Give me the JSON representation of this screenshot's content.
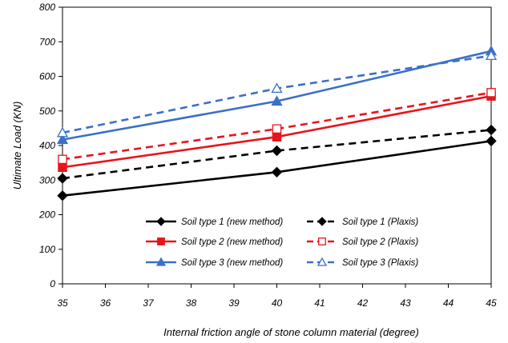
{
  "chart_data": {
    "type": "line",
    "title": "",
    "xlabel": "Internal friction angle of stone column material (degree)",
    "ylabel": "Ultimate Load (KN)",
    "xlim": [
      35,
      45
    ],
    "ylim": [
      0,
      800
    ],
    "x_ticks": [
      "35",
      "36",
      "37",
      "38",
      "39",
      "40",
      "41",
      "42",
      "43",
      "44",
      "45"
    ],
    "y_ticks": [
      "0",
      "100",
      "200",
      "300",
      "400",
      "500",
      "600",
      "700",
      "800"
    ],
    "grid": false,
    "legend_position": "bottom-right",
    "x": [
      35,
      40,
      45
    ],
    "series": [
      {
        "name": "Soil type 1 (new method)",
        "values": [
          255,
          323,
          413
        ],
        "color": "#000000",
        "dash": false,
        "marker": "diamond-filled"
      },
      {
        "name": "Soil type 1 (Plaxis)",
        "values": [
          305,
          385,
          445
        ],
        "color": "#000000",
        "dash": true,
        "marker": "diamond-filled"
      },
      {
        "name": "Soil type 2 (new method)",
        "values": [
          337,
          425,
          543
        ],
        "color": "#e8141b",
        "dash": false,
        "marker": "square-filled"
      },
      {
        "name": "Soil type 2 (Plaxis)",
        "values": [
          360,
          448,
          553
        ],
        "color": "#e8141b",
        "dash": true,
        "marker": "square-open"
      },
      {
        "name": "Soil type 3 (new method)",
        "values": [
          417,
          528,
          673
        ],
        "color": "#3b70c8",
        "dash": false,
        "marker": "triangle-filled"
      },
      {
        "name": "Soil type 3 (Plaxis)",
        "values": [
          437,
          565,
          660
        ],
        "color": "#3b70c8",
        "dash": true,
        "marker": "triangle-open"
      }
    ]
  }
}
